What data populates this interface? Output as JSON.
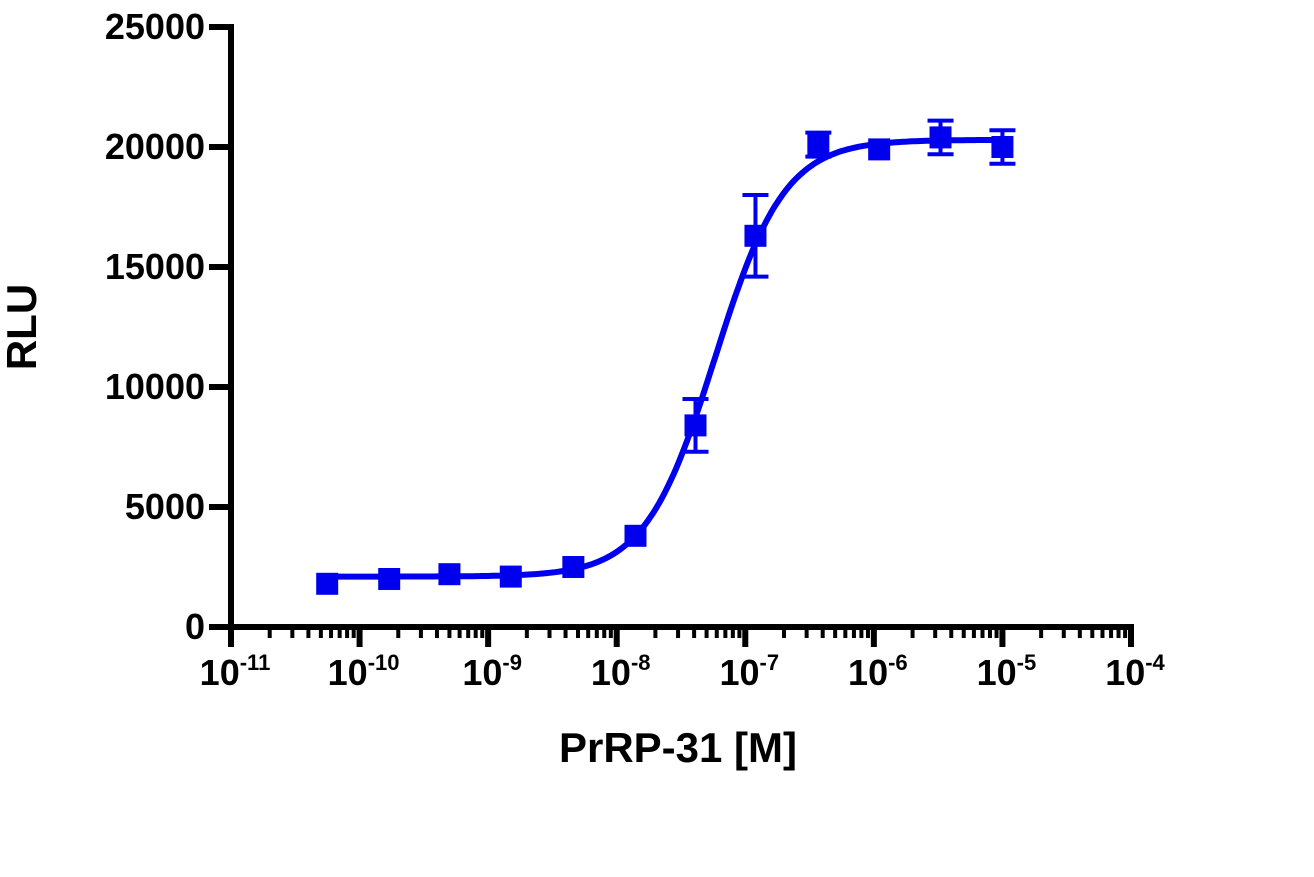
{
  "chart_data": {
    "type": "scatter",
    "title": "",
    "xlabel": "PrRP-31 [M]",
    "ylabel": "RLU",
    "x_scale": "log",
    "xlim": [
      1e-11,
      0.0001
    ],
    "ylim": [
      0,
      25000
    ],
    "y_ticks": [
      0,
      5000,
      10000,
      15000,
      20000,
      25000
    ],
    "x_ticks": [
      {
        "base": "10",
        "exp": "-11",
        "value": 1e-11
      },
      {
        "base": "10",
        "exp": "-10",
        "value": 1e-10
      },
      {
        "base": "10",
        "exp": "-9",
        "value": 1e-09
      },
      {
        "base": "10",
        "exp": "-8",
        "value": 1e-08
      },
      {
        "base": "10",
        "exp": "-7",
        "value": 1e-07
      },
      {
        "base": "10",
        "exp": "-6",
        "value": 1e-06
      },
      {
        "base": "10",
        "exp": "-5",
        "value": 1e-05
      },
      {
        "base": "10",
        "exp": "-4",
        "value": 0.0001
      }
    ],
    "grid": false,
    "color": "#0000ee",
    "marker": "square",
    "points": [
      {
        "x": 5.6e-11,
        "y": 1800,
        "err": 0
      },
      {
        "x": 1.7e-10,
        "y": 2000,
        "err": 0
      },
      {
        "x": 5e-10,
        "y": 2200,
        "err": 0
      },
      {
        "x": 1.5e-09,
        "y": 2100,
        "err": 0
      },
      {
        "x": 4.6e-09,
        "y": 2500,
        "err": 0
      },
      {
        "x": 1.4e-08,
        "y": 3800,
        "err": 0
      },
      {
        "x": 4.1e-08,
        "y": 8400,
        "err": 1100
      },
      {
        "x": 1.2e-07,
        "y": 16300,
        "err": 1700
      },
      {
        "x": 3.7e-07,
        "y": 20100,
        "err": 500
      },
      {
        "x": 1.1e-06,
        "y": 19900,
        "err": 0
      },
      {
        "x": 3.3e-06,
        "y": 20400,
        "err": 700
      },
      {
        "x": 1e-05,
        "y": 20000,
        "err": 700
      }
    ],
    "fit": {
      "model": "sigmoidal dose-response",
      "bottom": 2100,
      "top": 20300,
      "ec50": 5.8e-08,
      "hill": 1.6
    }
  }
}
